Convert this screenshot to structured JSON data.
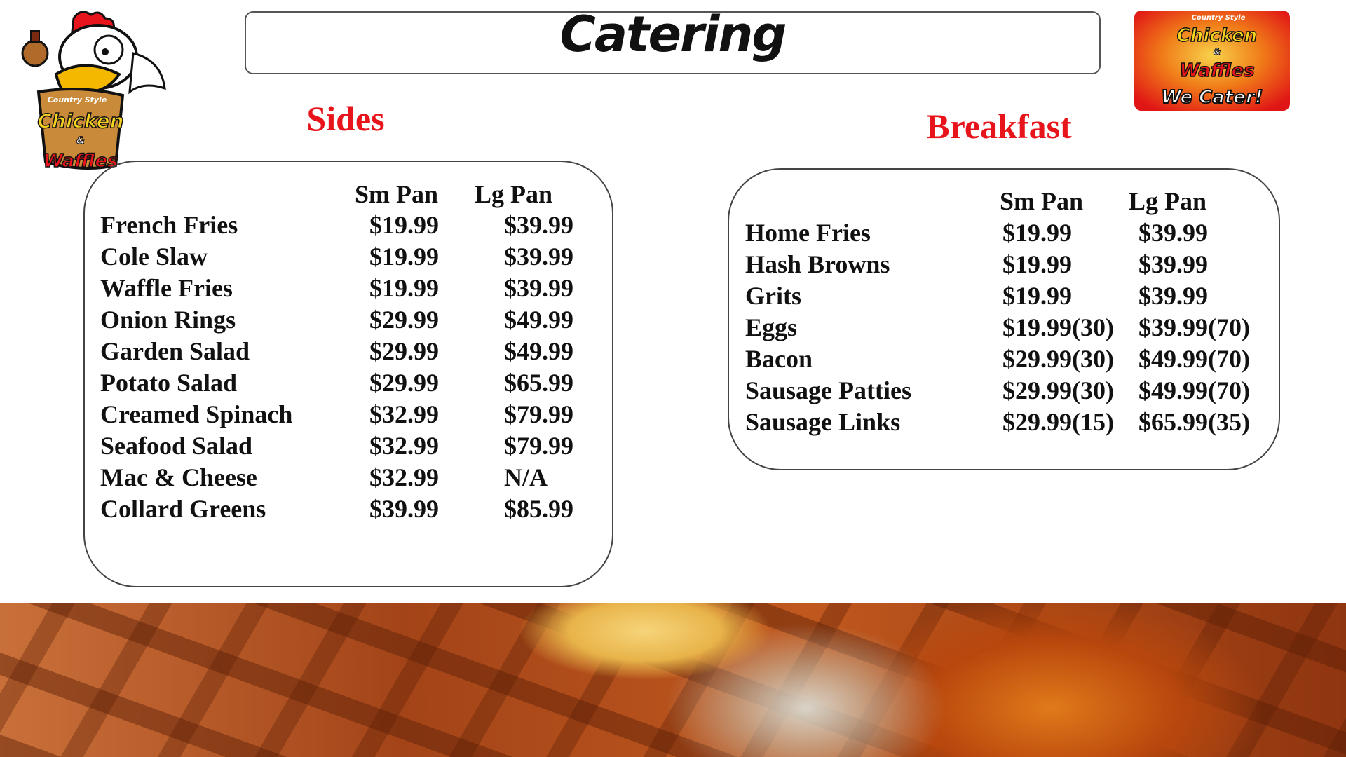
{
  "title": "Catering",
  "logos": {
    "left": {
      "lines": [
        "Country Style",
        "Chicken",
        "&",
        "Waffles"
      ]
    },
    "right": {
      "lines": [
        "Country Style",
        "Chicken",
        "&",
        "Waffles",
        "We Cater!"
      ]
    }
  },
  "sides": {
    "title": "Sides",
    "headers": [
      "Sm Pan",
      "Lg Pan"
    ],
    "rows": [
      {
        "name": "French Fries",
        "sm": "$19.99",
        "lg": "$39.99"
      },
      {
        "name": "Cole Slaw",
        "sm": "$19.99",
        "lg": "$39.99"
      },
      {
        "name": "Waffle Fries",
        "sm": "$19.99",
        "lg": "$39.99"
      },
      {
        "name": "Onion Rings",
        "sm": "$29.99",
        "lg": "$49.99"
      },
      {
        "name": "Garden Salad",
        "sm": "$29.99",
        "lg": "$49.99"
      },
      {
        "name": "Potato Salad",
        "sm": "$29.99",
        "lg": "$65.99"
      },
      {
        "name": "Creamed Spinach",
        "sm": "$32.99",
        "lg": "$79.99"
      },
      {
        "name": "Seafood Salad",
        "sm": "$32.99",
        "lg": "$79.99"
      },
      {
        "name": "Mac & Cheese",
        "sm": "$32.99",
        "lg": "N/A"
      },
      {
        "name": "Collard Greens",
        "sm": "$39.99",
        "lg": "$85.99"
      }
    ]
  },
  "breakfast": {
    "title": "Breakfast",
    "headers": [
      "Sm Pan",
      "Lg Pan"
    ],
    "rows": [
      {
        "name": "Home Fries",
        "sm": "$19.99",
        "lg": "$39.99"
      },
      {
        "name": "Hash Browns",
        "sm": "$19.99",
        "lg": "$39.99"
      },
      {
        "name": "Grits",
        "sm": "$19.99",
        "lg": "$39.99"
      },
      {
        "name": "Eggs",
        "sm": "$19.99(30)",
        "lg": "$39.99(70)"
      },
      {
        "name": "Bacon",
        "sm": "$29.99(30)",
        "lg": "$49.99(70)"
      },
      {
        "name": "Sausage Patties",
        "sm": "$29.99(30)",
        "lg": "$49.99(70)"
      },
      {
        "name": "Sausage Links",
        "sm": "$29.99(15)",
        "lg": "$65.99(35)"
      }
    ]
  },
  "colors": {
    "section_title": "#e8141b",
    "logo_red": "#e8141b",
    "logo_yellow": "#f5d320"
  }
}
